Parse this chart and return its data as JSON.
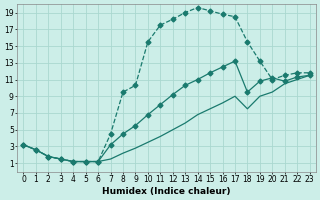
{
  "xlabel": "Humidex (Indice chaleur)",
  "bg_color": "#cceee8",
  "grid_color": "#aad8d0",
  "line_color": "#1a7a6e",
  "xlim": [
    -0.5,
    23.5
  ],
  "ylim": [
    0,
    20
  ],
  "xticks": [
    0,
    1,
    2,
    3,
    4,
    5,
    6,
    7,
    8,
    9,
    10,
    11,
    12,
    13,
    14,
    15,
    16,
    17,
    18,
    19,
    20,
    21,
    22,
    23
  ],
  "yticks": [
    1,
    3,
    5,
    7,
    9,
    11,
    13,
    15,
    17,
    19
  ],
  "curve1_x": [
    0,
    1,
    2,
    3,
    4,
    5,
    6,
    7,
    8,
    9,
    10,
    11,
    12,
    13,
    14,
    15,
    16,
    17,
    18,
    19,
    20,
    21,
    22,
    23
  ],
  "curve1_y": [
    3.2,
    2.6,
    1.8,
    1.5,
    1.2,
    1.2,
    1.2,
    4.5,
    9.5,
    10.3,
    15.5,
    17.5,
    18.2,
    19.0,
    19.6,
    19.2,
    18.8,
    18.5,
    15.5,
    13.2,
    11.0,
    11.5,
    11.8,
    11.8
  ],
  "curve2_x": [
    0,
    1,
    2,
    3,
    4,
    5,
    6,
    7,
    8,
    9,
    10,
    11,
    12,
    13,
    14,
    15,
    16,
    17,
    18,
    19,
    20,
    21,
    22,
    23
  ],
  "curve2_y": [
    3.2,
    2.6,
    1.8,
    1.5,
    1.2,
    1.2,
    1.2,
    3.2,
    4.5,
    5.5,
    6.8,
    8.0,
    9.2,
    10.3,
    11.0,
    11.8,
    12.5,
    13.2,
    9.5,
    10.8,
    11.2,
    10.8,
    11.3,
    11.5
  ],
  "curve3_x": [
    0,
    1,
    2,
    3,
    4,
    5,
    6,
    7,
    8,
    9,
    10,
    11,
    12,
    13,
    14,
    15,
    16,
    17,
    18,
    19,
    20,
    21,
    22,
    23
  ],
  "curve3_y": [
    3.2,
    2.6,
    1.8,
    1.5,
    1.2,
    1.2,
    1.2,
    1.5,
    2.2,
    2.8,
    3.5,
    4.2,
    5.0,
    5.8,
    6.8,
    7.5,
    8.2,
    9.0,
    7.5,
    9.0,
    9.5,
    10.5,
    11.0,
    11.5
  ],
  "marker_size": 2.5,
  "line_width": 0.9,
  "label_fontsize": 6.5,
  "tick_fontsize": 5.5
}
